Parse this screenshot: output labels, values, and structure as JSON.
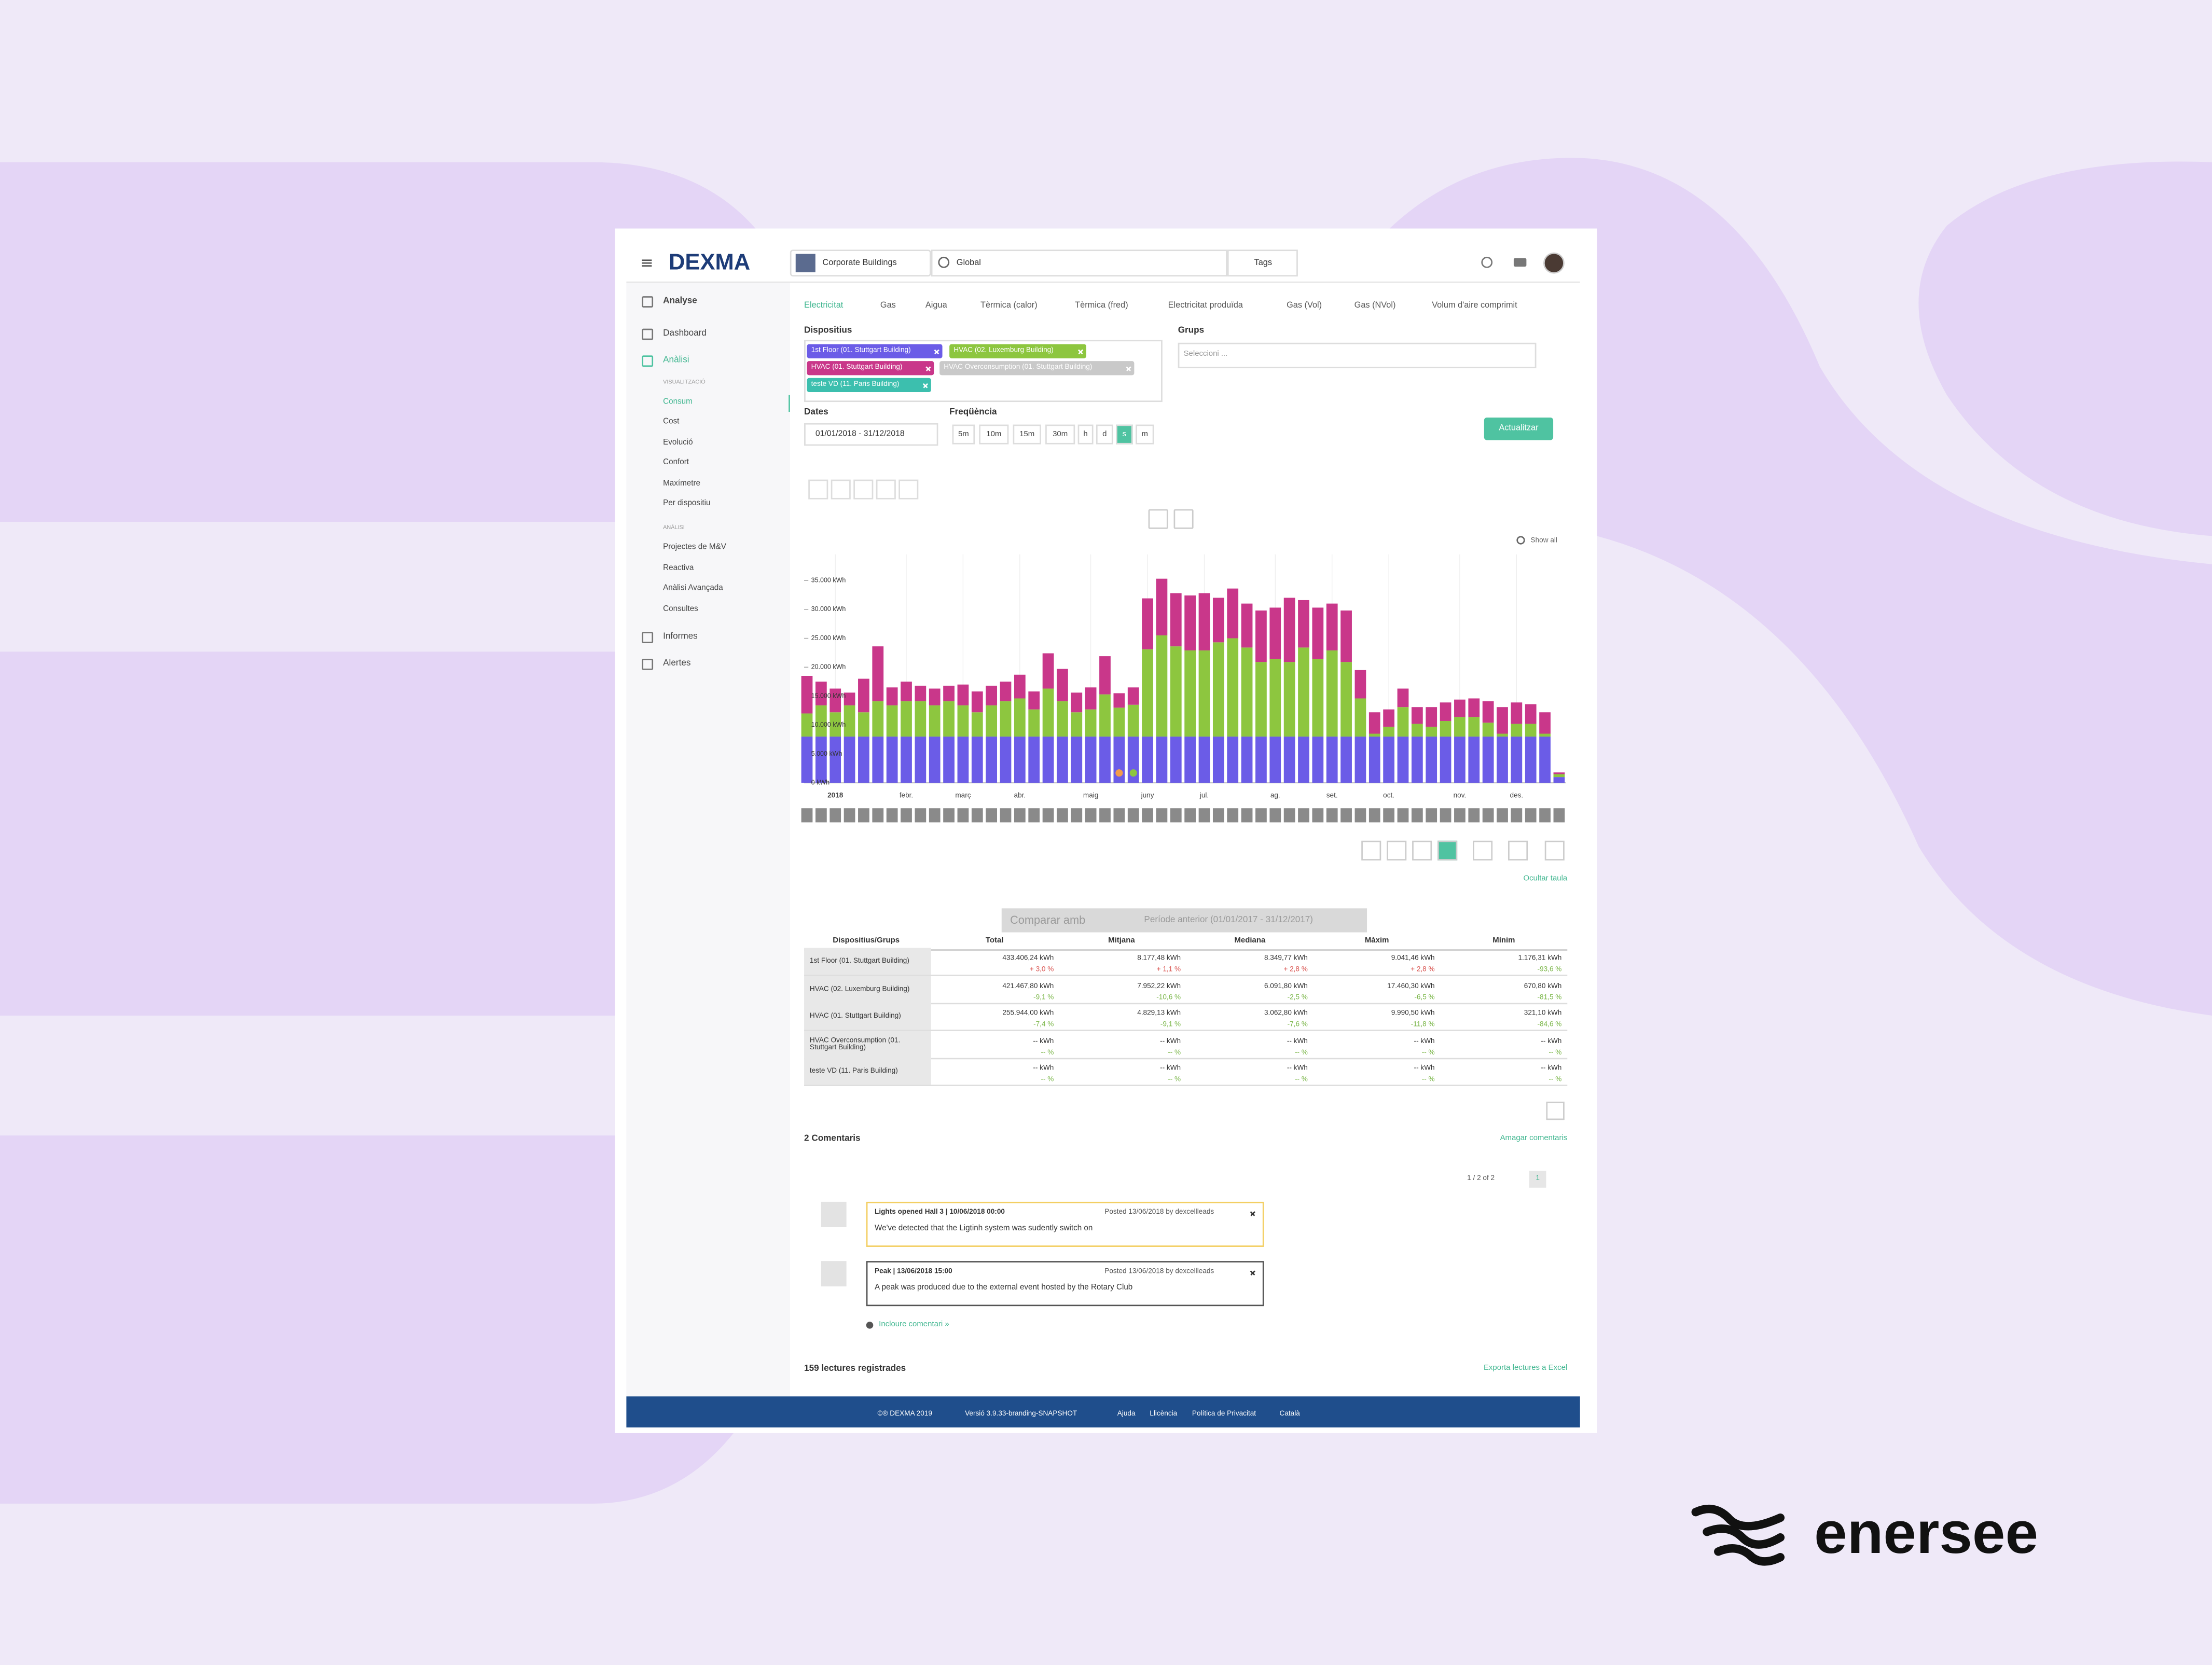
{
  "header": {
    "logo": "DEXMA",
    "account": "Corporate Buildings",
    "location": "Global",
    "tags": "Tags"
  },
  "sidebar": [
    "Analyse",
    "Dashboard",
    "Anàlisi",
    "VISUALITZACIÓ",
    "Consum",
    "Cost",
    "Evolució",
    "Confort",
    "Maxímetre",
    "Per dispositiu",
    "ANÀLISI",
    "Projectes de M&V",
    "Reactiva",
    "Anàlisi Avançada",
    "Consultes",
    "Informes",
    "Alertes"
  ],
  "tabs": [
    "Electricitat",
    "Gas",
    "Aigua",
    "Tèrmica (calor)",
    "Tèrmica (fred)",
    "Electricitat produïda",
    "Gas (Vol)",
    "Gas (NVol)",
    "Volum d'aire comprimit"
  ],
  "filters": {
    "devices_label": "Dispositius",
    "groups_label": "Grups",
    "groups_placeholder": "Seleccioni ...",
    "devices": [
      {
        "name": "1st Floor (01. Stuttgart Building)",
        "color": "#6b5ce7"
      },
      {
        "name": "HVAC (02. Luxemburg Building)",
        "color": "#8dc63f"
      },
      {
        "name": "HVAC (01. Stuttgart Building)",
        "color": "#c9378a"
      },
      {
        "name": "HVAC Overconsumption (01. Stuttgart Building)",
        "color": "#c9c9c9"
      },
      {
        "name": "teste VD (11. Paris Building)",
        "color": "#3cbfae"
      }
    ],
    "dates_label": "Dates",
    "dates": "01/01/2018 - 31/12/2018",
    "frequency_label": "Freqüència",
    "frequencies": [
      "5m",
      "10m",
      "15m",
      "30m",
      "h",
      "d",
      "s",
      "m"
    ],
    "active_frequency": 6,
    "update": "Actualitzar"
  },
  "chart_data": {
    "type": "bar",
    "stacked": true,
    "show_all": "Show all",
    "categories": [
      null,
      null,
      "2018",
      null,
      null,
      null,
      null,
      "febr.",
      null,
      null,
      null,
      "març",
      null,
      null,
      null,
      "abr.",
      null,
      null,
      null,
      null,
      "maig",
      null,
      null,
      null,
      "juny",
      null,
      null,
      null,
      "jul.",
      null,
      null,
      null,
      null,
      "ag.",
      null,
      null,
      null,
      "set.",
      null,
      null,
      null,
      "oct.",
      null,
      null,
      null,
      null,
      "nov.",
      null,
      null,
      null,
      "des.",
      null,
      null,
      null
    ],
    "series": [
      {
        "color": "#6b5ce7",
        "values": [
          8000,
          8000,
          8000,
          8000,
          8000,
          8000,
          8000,
          8000,
          8000,
          8000,
          8000,
          8000,
          8000,
          8000,
          8000,
          8000,
          8000,
          8000,
          8000,
          8000,
          8000,
          8000,
          8000,
          8000,
          8000,
          8000,
          8000,
          8000,
          8000,
          8000,
          8000,
          8000,
          8000,
          8000,
          8000,
          8000,
          8000,
          8000,
          8000,
          8000,
          8000,
          8000,
          8000,
          8000,
          8000,
          8000,
          8000,
          8000,
          8000,
          8000,
          8000,
          8000,
          8000,
          1000
        ]
      },
      {
        "color": "#8dc63f",
        "values": [
          4000,
          5400,
          4200,
          5400,
          4200,
          6100,
          5400,
          6100,
          6100,
          5400,
          6100,
          5400,
          4200,
          5400,
          6100,
          6600,
          4700,
          8300,
          6100,
          4200,
          4700,
          7300,
          5000,
          5500,
          15100,
          17500,
          15600,
          14900,
          14900,
          16300,
          17000,
          15400,
          12900,
          13400,
          12900,
          15400,
          13400,
          14900,
          12900,
          6600,
          500,
          1700,
          5100,
          2200,
          1700,
          2700,
          3400,
          3400,
          2400,
          500,
          2200,
          2200,
          500,
          500
        ]
      },
      {
        "color": "#c9378a",
        "values": [
          6500,
          4100,
          4100,
          2200,
          5800,
          9500,
          3100,
          3400,
          2700,
          2900,
          2700,
          3600,
          3600,
          3400,
          3400,
          4100,
          3100,
          6100,
          5600,
          3400,
          3800,
          6600,
          2500,
          3000,
          8800,
          9800,
          9200,
          9500,
          9900,
          7700,
          8600,
          7600,
          8900,
          8900,
          11100,
          8200,
          8900,
          8100,
          8900,
          4900,
          3700,
          3000,
          3200,
          2900,
          3400,
          3200,
          3000,
          3200,
          3700,
          4600,
          3700,
          3400,
          3700,
          300
        ]
      }
    ],
    "ylim": [
      0,
      40000
    ],
    "yticks": [
      {
        "value": 0,
        "label": "0 kWh"
      },
      {
        "value": 5000,
        "label": "5.000 kWh"
      },
      {
        "value": 10000,
        "label": "10.000 kWh"
      },
      {
        "value": 15000,
        "label": "15.000 kWh"
      },
      {
        "value": 20000,
        "label": "20.000 kWh"
      },
      {
        "value": 25000,
        "label": "25.000 kWh"
      },
      {
        "value": 30000,
        "label": "30.000 kWh"
      },
      {
        "value": 35000,
        "label": "35.000 kWh"
      }
    ],
    "grid": false
  },
  "hide_table": "Ocultar taula",
  "compare": {
    "label": "Comparar amb",
    "period": "Període anterior (01/01/2017 - 31/12/2017)"
  },
  "table": {
    "headers": [
      "Dispositius/Grups",
      "Total",
      "Mitjana",
      "Mediana",
      "Màxim",
      "Mínim"
    ],
    "rows": [
      {
        "device": "1st Floor (01. Stuttgart Building)",
        "cells": [
          {
            "value": "433.406,24 kWh",
            "change": "+ 3,0 %"
          },
          {
            "value": "8.177,48 kWh",
            "change": "+ 1,1 %"
          },
          {
            "value": "8.349,77 kWh",
            "change": "+ 2,8 %"
          },
          {
            "value": "9.041,46 kWh",
            "change": "+ 2,8 %"
          },
          {
            "value": "1.176,31 kWh",
            "change": "-93,6 %"
          }
        ]
      },
      {
        "device": "HVAC (02. Luxemburg Building)",
        "cells": [
          {
            "value": "421.467,80 kWh",
            "change": "-9,1 %"
          },
          {
            "value": "7.952,22 kWh",
            "change": "-10,6 %"
          },
          {
            "value": "6.091,80 kWh",
            "change": "-2,5 %"
          },
          {
            "value": "17.460,30 kWh",
            "change": "-6,5 %"
          },
          {
            "value": "670,80 kWh",
            "change": "-81,5 %"
          }
        ]
      },
      {
        "device": "HVAC (01. Stuttgart Building)",
        "cells": [
          {
            "value": "255.944,00 kWh",
            "change": "-7,4 %"
          },
          {
            "value": "4.829,13 kWh",
            "change": "-9,1 %"
          },
          {
            "value": "3.062,80 kWh",
            "change": "-7,6 %"
          },
          {
            "value": "9.990,50 kWh",
            "change": "-11,8 %"
          },
          {
            "value": "321,10 kWh",
            "change": "-84,6 %"
          }
        ]
      },
      {
        "device": "HVAC Overconsumption (01. Stuttgart Building)",
        "cells": [
          {
            "value": "-- kWh",
            "change": "-- %"
          },
          {
            "value": "-- kWh",
            "change": "-- %"
          },
          {
            "value": "-- kWh",
            "change": "-- %"
          },
          {
            "value": "-- kWh",
            "change": "-- %"
          },
          {
            "value": "-- kWh",
            "change": "-- %"
          }
        ]
      },
      {
        "device": "teste VD (11. Paris Building)",
        "cells": [
          {
            "value": "-- kWh",
            "change": "-- %"
          },
          {
            "value": "-- kWh",
            "change": "-- %"
          },
          {
            "value": "-- kWh",
            "change": "-- %"
          },
          {
            "value": "-- kWh",
            "change": "-- %"
          },
          {
            "value": "-- kWh",
            "change": "-- %"
          }
        ]
      }
    ]
  },
  "comments": {
    "title": "2 Comentaris",
    "hide": "Amagar comentaris",
    "pagination": "1 / 2 of 2",
    "page": "1",
    "items": [
      {
        "title": "Lights opened Hall 3 | 10/06/2018 00:00",
        "posted": "Posted 13/06/2018 by dexcellleads",
        "body": "We've detected that the Ligtinh system was sudently switch on"
      },
      {
        "title": "Peak | 13/06/2018 15:00",
        "posted": "Posted 13/06/2018 by dexcellleads",
        "body": "A peak was produced due to the external event hosted by the Rotary Club"
      }
    ],
    "add": "Incloure comentari »"
  },
  "readings": {
    "count": "159 lectures registrades",
    "export": "Exporta lectures a Excel"
  },
  "footer": [
    "©® DEXMA 2019",
    "Versió 3.9.33-branding-SNAPSHOT",
    "Ajuda",
    "Llicència",
    "Política de Privacitat",
    "Català"
  ],
  "brand": "enersee"
}
